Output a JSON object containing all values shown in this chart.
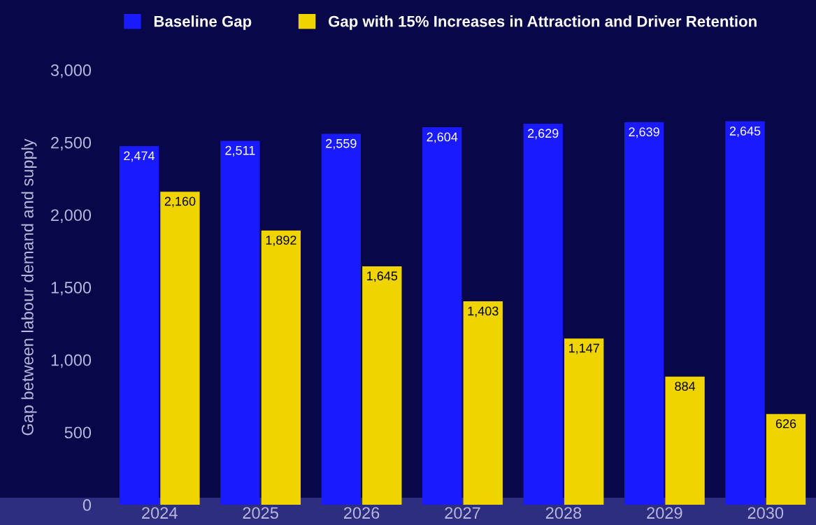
{
  "chart_data": {
    "type": "bar",
    "ylabel": "Gap between labour demand and supply",
    "categories": [
      "2024",
      "2025",
      "2026",
      "2027",
      "2028",
      "2029",
      "2030"
    ],
    "series": [
      {
        "name": "Baseline Gap",
        "color": "#1a1aff",
        "values": [
          2474,
          2511,
          2559,
          2604,
          2629,
          2639,
          2645
        ],
        "value_labels": [
          "2,474",
          "2,511",
          "2,559",
          "2,604",
          "2,629",
          "2,639",
          "2,645"
        ]
      },
      {
        "name": "Gap with 15% Increases in Attraction and Driver Retention",
        "color": "#f0d400",
        "values": [
          2160,
          1892,
          1645,
          1403,
          1147,
          884,
          626
        ],
        "value_labels": [
          "2,160",
          "1,892",
          "1,645",
          "1,403",
          "1,147",
          "884",
          "626"
        ]
      }
    ],
    "ylim": [
      0,
      3000
    ],
    "yticks": [
      {
        "value": 0,
        "label": "0"
      },
      {
        "value": 500,
        "label": "500"
      },
      {
        "value": 1000,
        "label": "1,000"
      },
      {
        "value": 1500,
        "label": "1,500"
      },
      {
        "value": 2000,
        "label": "2,000"
      },
      {
        "value": 2500,
        "label": "2,500"
      },
      {
        "value": 3000,
        "label": "3,000"
      }
    ],
    "grid": false,
    "legend": "top"
  }
}
